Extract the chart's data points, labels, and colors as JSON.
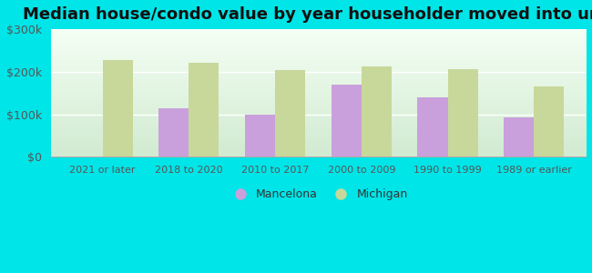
{
  "title": "Median house/condo value by year householder moved into unit",
  "categories": [
    "2021 or later",
    "2018 to 2020",
    "2010 to 2017",
    "2000 to 2009",
    "1990 to 1999",
    "1989 or earlier"
  ],
  "mancelona": [
    0,
    115000,
    100000,
    170000,
    140000,
    93000
  ],
  "michigan": [
    228000,
    220000,
    203000,
    212000,
    207000,
    165000
  ],
  "mancelona_color": "#c9a0dc",
  "michigan_color": "#c8d89a",
  "background_outer": "#00e5e8",
  "background_inner_top": "#f5fff5",
  "background_inner_bottom": "#c8e8c8",
  "ylim": [
    0,
    300000
  ],
  "yticks": [
    0,
    100000,
    200000,
    300000
  ],
  "ytick_labels": [
    "$0",
    "$100k",
    "$200k",
    "$300k"
  ],
  "legend_mancelona": "Mancelona",
  "legend_michigan": "Michigan",
  "bar_width": 0.35,
  "title_fontsize": 13
}
